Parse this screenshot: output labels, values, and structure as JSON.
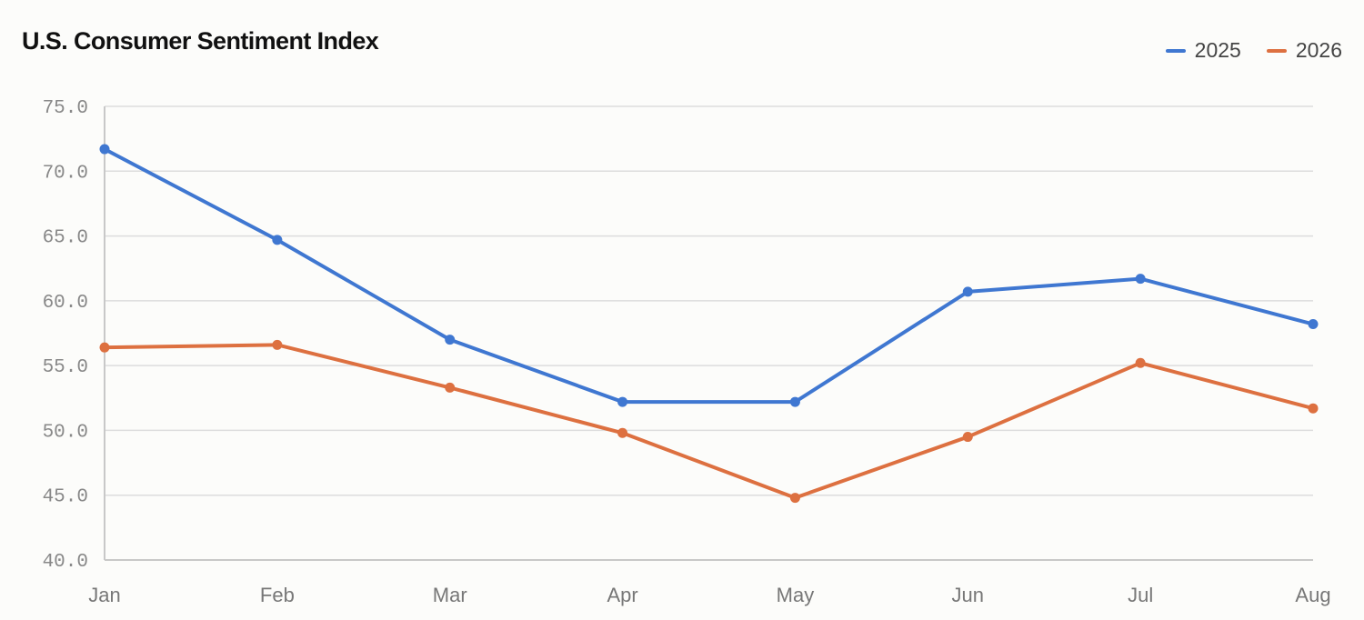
{
  "chart_data": {
    "type": "line",
    "title": "U.S. Consumer Sentiment Index",
    "categories": [
      "Jan",
      "Feb",
      "Mar",
      "Apr",
      "May",
      "Jun",
      "Jul",
      "Aug"
    ],
    "series": [
      {
        "name": "2025",
        "color": "#3f77d1",
        "values": [
          71.7,
          64.7,
          57.0,
          52.2,
          52.2,
          60.7,
          61.7,
          58.2
        ]
      },
      {
        "name": "2026",
        "color": "#dd7040",
        "values": [
          56.4,
          56.6,
          53.3,
          49.8,
          44.8,
          49.5,
          55.2,
          51.7
        ]
      }
    ],
    "yticks": [
      "40.0",
      "45.0",
      "50.0",
      "55.0",
      "60.0",
      "65.0",
      "70.0",
      "75.0"
    ],
    "ylim": [
      40,
      75
    ],
    "grid": true,
    "legend_position": "top-right"
  }
}
